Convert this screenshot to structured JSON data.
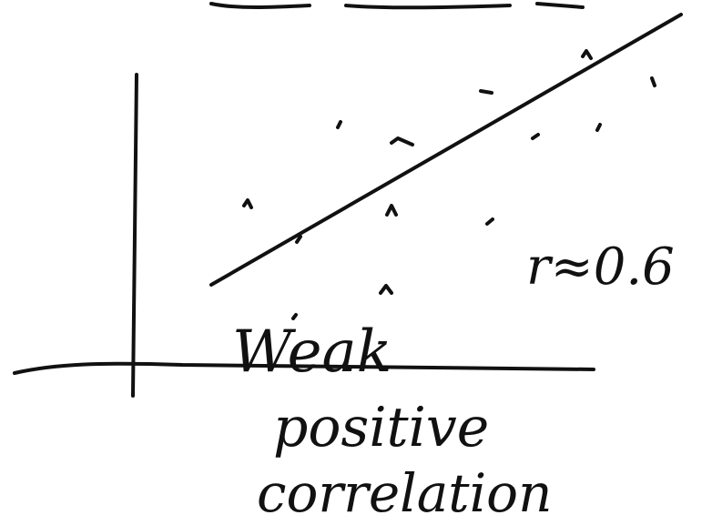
{
  "annotations": {
    "r_value": "r≈0.6",
    "label_line1": "Weak",
    "label_line2": "positive",
    "label_line3": "correlation"
  }
}
